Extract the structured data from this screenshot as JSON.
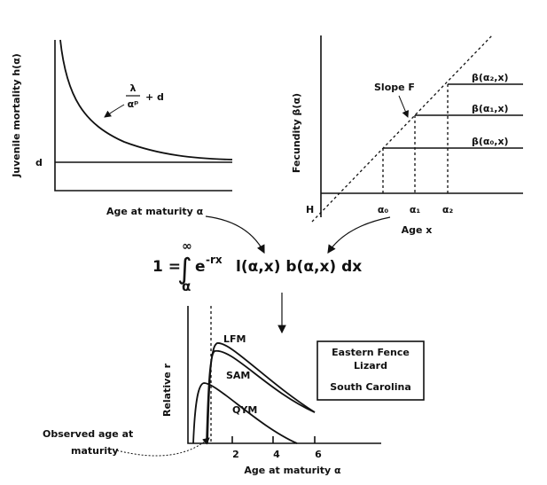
{
  "panel_a": {
    "y_label": "Juvenile mortality h(α)",
    "formula_numerator": "λ",
    "formula_denominator": "αᵖ",
    "formula_rest": "+ d",
    "d_label": "d",
    "x_label": "Age at maturity α"
  },
  "panel_b": {
    "y_label": "Fecundity β(α)",
    "slope_label": "Slope F",
    "h_label": "H",
    "line_labels": [
      "β(α₂,x)",
      "β(α₁,x)",
      "β(α₀,x)"
    ],
    "x_ticks": [
      "α₀",
      "α₁",
      "α₂"
    ],
    "x_label": "Age x"
  },
  "equation": {
    "lhs": "1 =",
    "integral": "∫",
    "upper": "∞",
    "lower": "α",
    "base": "e",
    "exponent": "-rx",
    "rest": "l(α,x) b(α,x) dx"
  },
  "panel_c": {
    "y_label": "Relative r",
    "curve_labels": [
      "LFM",
      "SAM",
      "QYM"
    ],
    "box_lines": [
      "Eastern Fence",
      "Lizard",
      "South Carolina"
    ],
    "x_ticks": [
      "2",
      "4",
      "6"
    ],
    "x_label": "Age at maturity α",
    "observed_label": [
      "Observed age at",
      "maturity"
    ]
  }
}
